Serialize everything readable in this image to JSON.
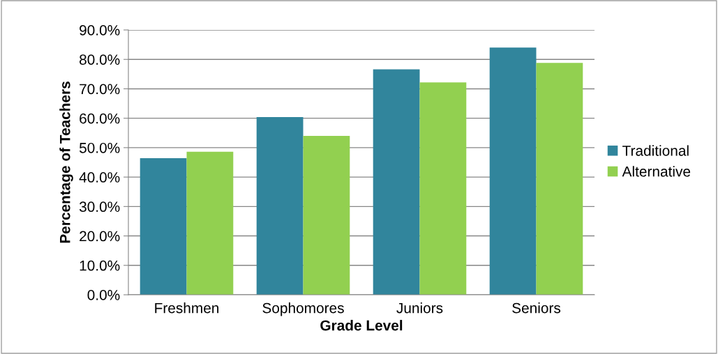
{
  "chart_data": {
    "type": "bar",
    "xlabel": "Grade Level",
    "ylabel": "Percentage of Teachers",
    "categories": [
      "Freshmen",
      "Sophomores",
      "Juniors",
      "Seniors"
    ],
    "series": [
      {
        "name": "Traditional",
        "color": "#31859c",
        "values": [
          46.4,
          60.4,
          76.6,
          84.0
        ]
      },
      {
        "name": "Alternative",
        "color": "#92d050",
        "values": [
          48.6,
          54.0,
          72.2,
          78.8
        ]
      }
    ],
    "ylim": [
      0,
      90
    ],
    "yticks": [
      {
        "value": 0,
        "label": "0.0%"
      },
      {
        "value": 10,
        "label": "10.0%"
      },
      {
        "value": 20,
        "label": "20.0%"
      },
      {
        "value": 30,
        "label": "30.0%"
      },
      {
        "value": 40,
        "label": "40.0%"
      },
      {
        "value": 50,
        "label": "50.0%"
      },
      {
        "value": 60,
        "label": "60.0%"
      },
      {
        "value": 70,
        "label": "70.0%"
      },
      {
        "value": 80,
        "label": "80.0%"
      },
      {
        "value": 90,
        "label": "90.0%"
      }
    ],
    "grid": "y",
    "legend": "right"
  }
}
